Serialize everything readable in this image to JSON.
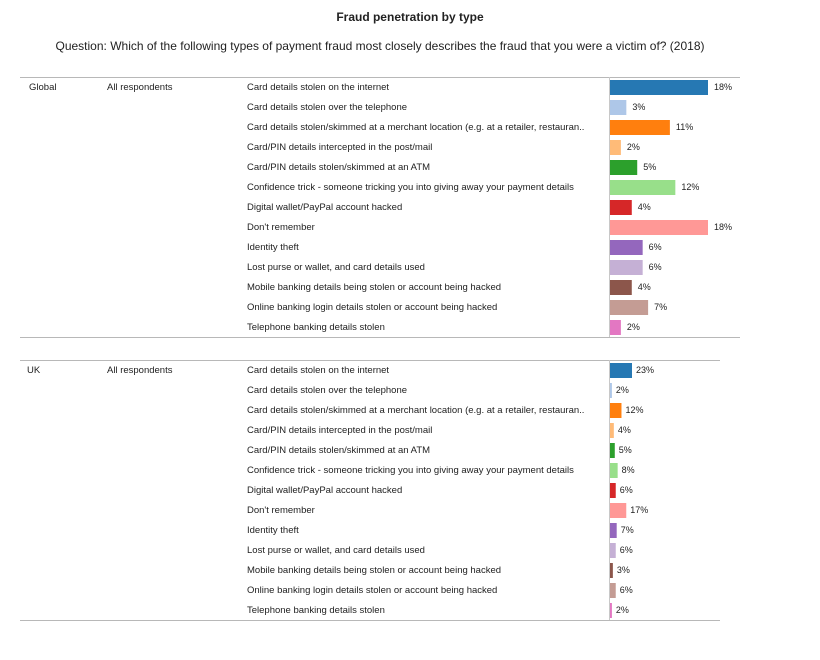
{
  "title": "Fraud penetration by type",
  "question": "Question: Which of the following types of payment fraud most closely describes the fraud that you were a victim of? (2018)",
  "chart_data": {
    "type": "bar",
    "orientation": "horizontal",
    "categories": [
      "Card details stolen on the internet",
      "Card details stolen over the telephone",
      "Card details stolen/skimmed at a merchant location (e.g. at a retailer, restauran..",
      "Card/PIN details intercepted in the post/mail",
      "Card/PIN details stolen/skimmed at an ATM",
      "Confidence trick - someone tricking you into giving away your payment details",
      "Digital wallet/PayPal account hacked",
      "Don't remember",
      "Identity theft",
      "Lost purse or wallet, and card details used",
      "Mobile banking details being stolen or account being hacked",
      "Online banking login details stolen or account being hacked",
      "Telephone banking details stolen"
    ],
    "colors": [
      "#2678b3",
      "#aec7e8",
      "#ff7f0e",
      "#ffbb78",
      "#2ca02c",
      "#98df8a",
      "#d62728",
      "#ff9896",
      "#9467bd",
      "#c5b0d5",
      "#8c564b",
      "#c49c94",
      "#e377c2"
    ],
    "panels": [
      {
        "region": "Global",
        "segment": "All respondents",
        "values": [
          18,
          3,
          11,
          2,
          5,
          12,
          4,
          18,
          6,
          6,
          4,
          7,
          2
        ],
        "labels": [
          "18%",
          "3%",
          "11%",
          "2%",
          "5%",
          "12%",
          "4%",
          "18%",
          "6%",
          "6%",
          "4%",
          "7%",
          "2%"
        ]
      },
      {
        "region": "UK",
        "segment": "All respondents",
        "values": [
          23,
          2,
          12,
          4,
          5,
          8,
          6,
          17,
          7,
          6,
          3,
          6,
          2
        ],
        "labels": [
          "23%",
          "2%",
          "12%",
          "4%",
          "5%",
          "8%",
          "6%",
          "17%",
          "7%",
          "6%",
          "3%",
          "6%",
          "2%"
        ]
      }
    ]
  }
}
